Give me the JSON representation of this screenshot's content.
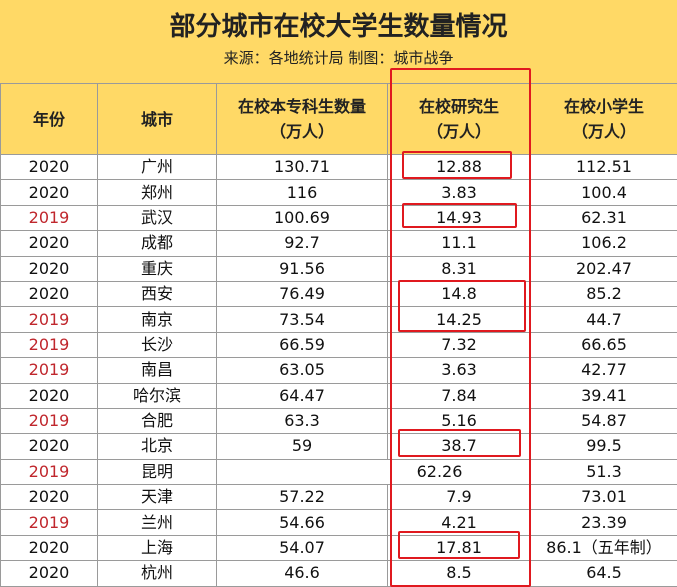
{
  "title": "部分城市在校大学生数量情况",
  "subtitle": "来源：各地统计局   制图：城市战争",
  "headers": {
    "year": "年份",
    "city": "城市",
    "college_line1": "在校本专科生数量",
    "college_line2": "（万人）",
    "grad_line1": "在校研究生",
    "grad_line2": "（万人）",
    "primary_line1": "在校小学生",
    "primary_line2": "（万人）"
  },
  "rows": [
    {
      "year": "2020",
      "city": "广州",
      "college": "130.71",
      "grad": "12.88",
      "primary": "112.51"
    },
    {
      "year": "2020",
      "city": "郑州",
      "college": "116",
      "grad": "3.83",
      "primary": "100.4"
    },
    {
      "year": "2019",
      "city": "武汉",
      "college": "100.69",
      "grad": "14.93",
      "primary": "62.31"
    },
    {
      "year": "2020",
      "city": "成都",
      "college": "92.7",
      "grad": "11.1",
      "primary": "106.2"
    },
    {
      "year": "2020",
      "city": "重庆",
      "college": "91.56",
      "grad": "8.31",
      "primary": "202.47"
    },
    {
      "year": "2020",
      "city": "西安",
      "college": "76.49",
      "grad": "14.8",
      "primary": "85.2"
    },
    {
      "year": "2019",
      "city": "南京",
      "college": "73.54",
      "grad": "14.25",
      "primary": "44.7"
    },
    {
      "year": "2019",
      "city": "长沙",
      "college": "66.59",
      "grad": "7.32",
      "primary": "66.65"
    },
    {
      "year": "2019",
      "city": "南昌",
      "college": "63.05",
      "grad": "3.63",
      "primary": "42.77"
    },
    {
      "year": "2020",
      "city": "哈尔滨",
      "college": "64.47",
      "grad": "7.84",
      "primary": "39.41"
    },
    {
      "year": "2019",
      "city": "合肥",
      "college": "63.3",
      "grad": "5.16",
      "primary": "54.87"
    },
    {
      "year": "2020",
      "city": "北京",
      "college": "59",
      "grad": "38.7",
      "primary": "99.5"
    },
    {
      "year": "2019",
      "city": "昆明",
      "college_grad_merged": "62.26",
      "primary": "51.3"
    },
    {
      "year": "2020",
      "city": "天津",
      "college": "57.22",
      "grad": "7.9",
      "primary": "73.01"
    },
    {
      "year": "2019",
      "city": "兰州",
      "college": "54.66",
      "grad": "4.21",
      "primary": "23.39"
    },
    {
      "year": "2020",
      "city": "上海",
      "college": "54.07",
      "grad": "17.81",
      "primary": "86.1（五年制）"
    },
    {
      "year": "2020",
      "city": "杭州",
      "college": "46.6",
      "grad": "8.5",
      "primary": "64.5"
    }
  ],
  "colors": {
    "header_bg": "#ffd966",
    "year_2019": "#c0272d",
    "highlight": "#e0191f"
  }
}
